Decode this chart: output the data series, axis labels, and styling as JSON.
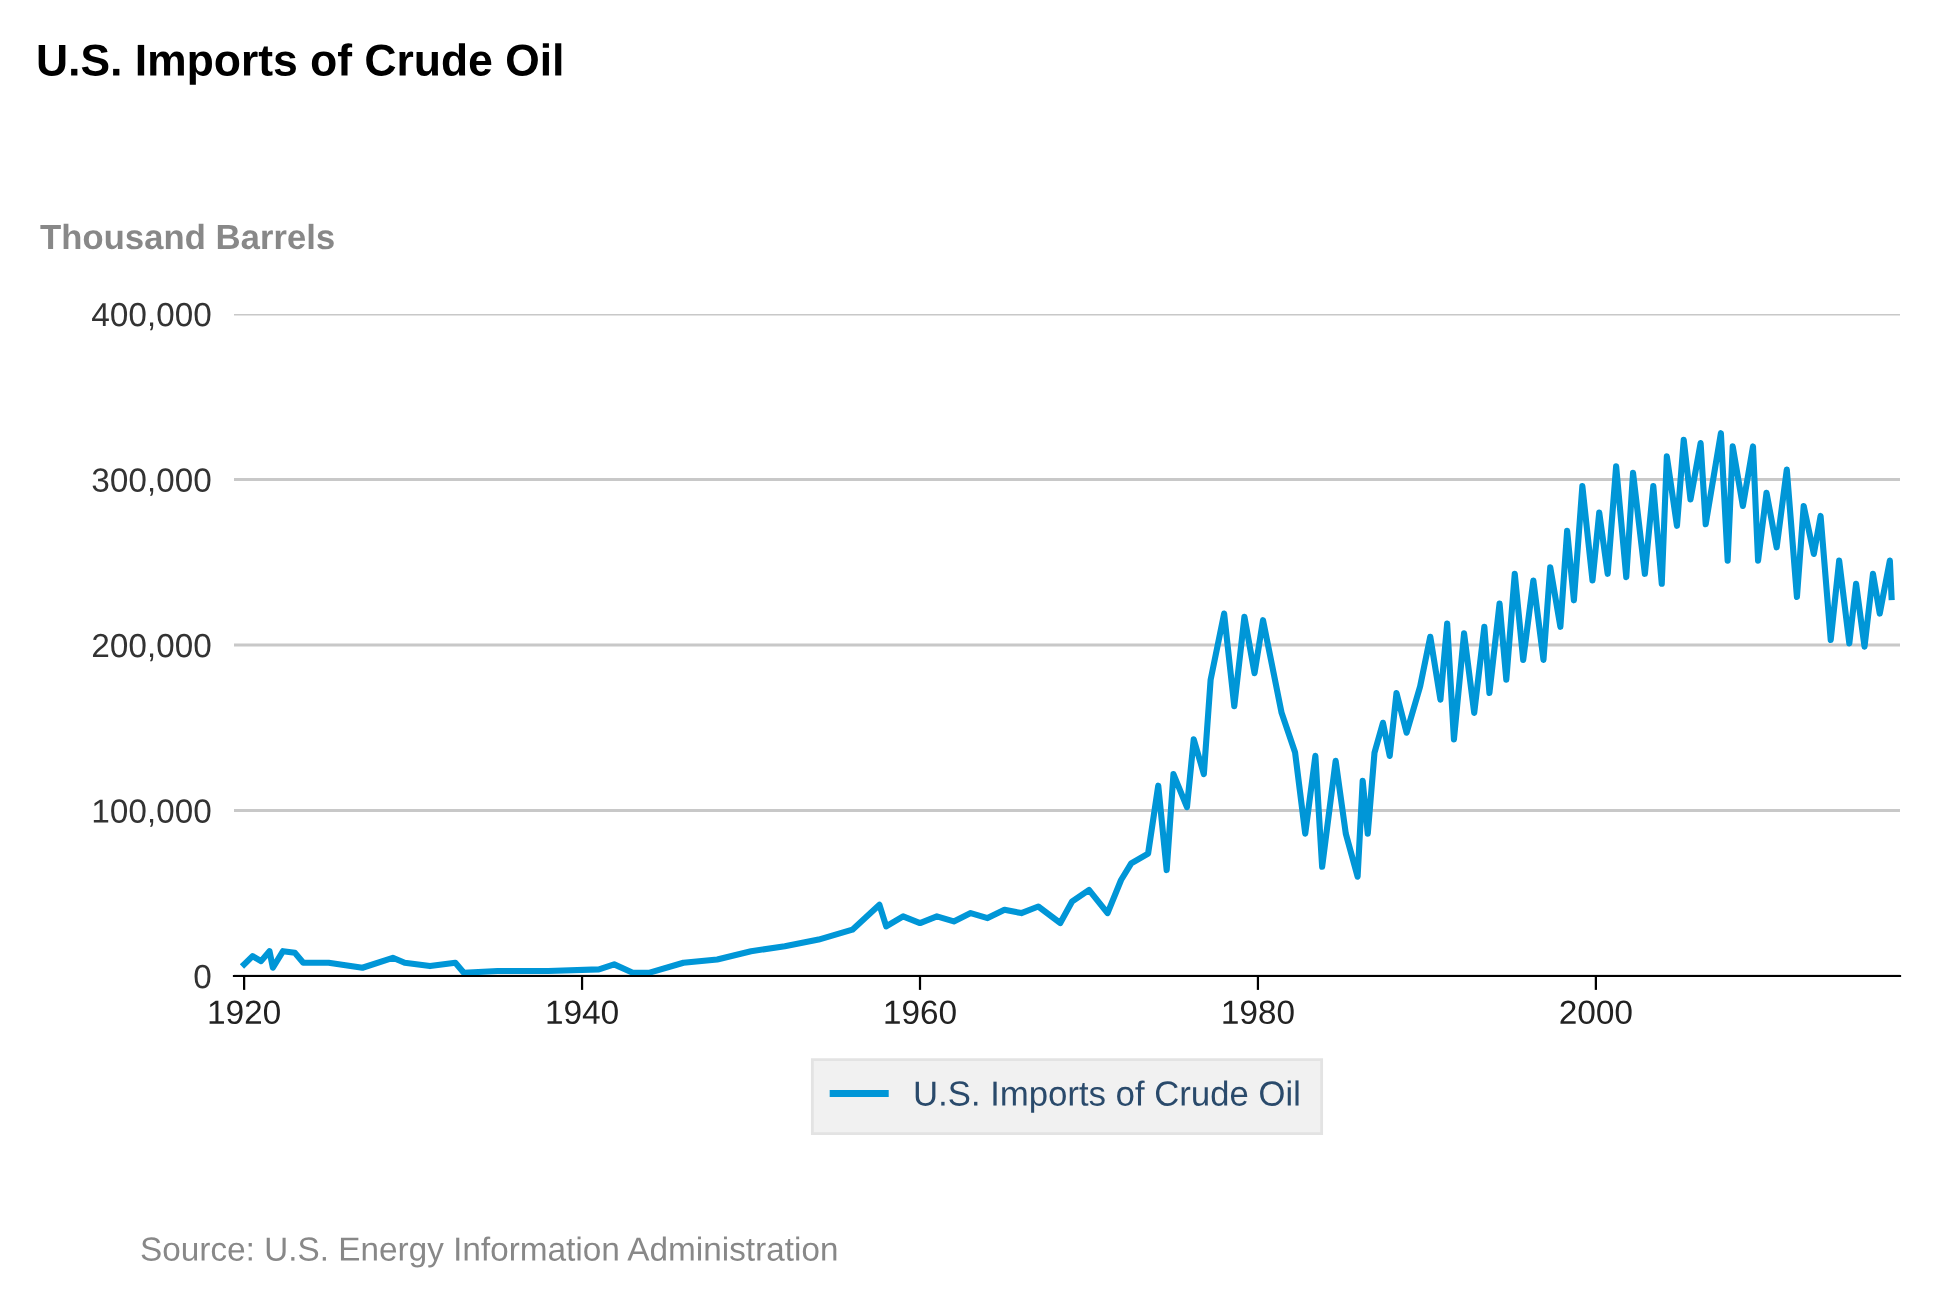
{
  "chart_data": {
    "type": "line",
    "title": "U.S. Imports of Crude Oil",
    "ylabel": "Thousand Barrels",
    "annotations": [
      "Source: U.S. Energy Information Administration"
    ],
    "xlim": [
      1919.4,
      2018
    ],
    "xticks": [
      1920,
      1940,
      1960,
      1980,
      2000
    ],
    "ylim": [
      0,
      400000
    ],
    "yticks": [
      {
        "value": 0,
        "label": "0"
      },
      {
        "value": 100000,
        "label": "100,000"
      },
      {
        "value": 200000,
        "label": "200,000"
      },
      {
        "value": 300000,
        "label": "300,000"
      },
      {
        "value": 400000,
        "label": "400,000"
      }
    ],
    "grid": "y",
    "legend": "bottom",
    "marker": "none",
    "line_style": "solid",
    "series": [
      {
        "name": "U.S. Imports of Crude Oil",
        "color": "#0096d7",
        "x": [
          1920.0,
          1920.5,
          1921.0,
          1921.5,
          1921.7,
          1922.3,
          1923.0,
          1923.5,
          1925.0,
          1927.0,
          1928.8,
          1929.5,
          1931.0,
          1932.5,
          1933.0,
          1935.0,
          1938.0,
          1941.0,
          1941.9,
          1943.0,
          1944.0,
          1946.0,
          1948.0,
          1950.0,
          1952.0,
          1954.0,
          1956.0,
          1957.6,
          1958.0,
          1959.0,
          1960.0,
          1961.0,
          1962.0,
          1963.0,
          1964.0,
          1965.0,
          1966.0,
          1967.0,
          1968.3,
          1969.0,
          1970.0,
          1971.1,
          1971.9,
          1972.5,
          1973.5,
          1974.1,
          1974.6,
          1975.0,
          1975.8,
          1976.2,
          1976.8,
          1977.2,
          1978.0,
          1978.6,
          1979.2,
          1979.8,
          1980.3,
          1981.4,
          1982.2,
          1982.8,
          1983.4,
          1983.8,
          1984.6,
          1985.2,
          1985.9,
          1986.2,
          1986.5,
          1986.9,
          1987.4,
          1987.8,
          1988.2,
          1988.8,
          1989.6,
          1990.2,
          1990.8,
          1991.2,
          1991.6,
          1992.2,
          1992.8,
          1993.4,
          1993.7,
          1994.3,
          1994.7,
          1995.2,
          1995.7,
          1996.3,
          1996.9,
          1997.3,
          1997.9,
          1998.3,
          1998.7,
          1999.2,
          1999.8,
          2000.2,
          2000.7,
          2001.2,
          2001.8,
          2002.2,
          2002.9,
          2003.4,
          2003.9,
          2004.2,
          2004.8,
          2005.2,
          2005.6,
          2006.2,
          2006.5,
          2007.4,
          2007.8,
          2008.1,
          2008.7,
          2009.3,
          2009.6,
          2010.1,
          2010.7,
          2011.3,
          2011.9,
          2012.3,
          2012.9,
          2013.3,
          2013.9,
          2014.4,
          2015.0,
          2015.4,
          2015.9,
          2016.4,
          2016.8,
          2017.4,
          2017.5
        ],
        "values": [
          7000,
          12000,
          9000,
          15000,
          5000,
          15000,
          14000,
          8000,
          8000,
          5000,
          11000,
          8000,
          6000,
          8000,
          2000,
          3000,
          3000,
          4000,
          7000,
          2000,
          2000,
          8000,
          10000,
          15000,
          18000,
          22000,
          28000,
          43000,
          30000,
          36000,
          32000,
          36000,
          33000,
          38000,
          35000,
          40000,
          38000,
          42000,
          32000,
          45000,
          52000,
          38000,
          58000,
          68000,
          74000,
          115000,
          64000,
          122000,
          102000,
          143000,
          122000,
          179000,
          219000,
          163000,
          217000,
          183000,
          215000,
          159000,
          135000,
          86000,
          133000,
          66000,
          130000,
          86000,
          60000,
          118000,
          86000,
          135000,
          153000,
          133000,
          171000,
          147000,
          175000,
          205000,
          167000,
          213000,
          143000,
          207000,
          159000,
          211000,
          171000,
          225000,
          179000,
          243000,
          191000,
          239000,
          191000,
          247000,
          211000,
          269000,
          227000,
          296000,
          239000,
          280000,
          243000,
          308000,
          241000,
          304000,
          243000,
          296000,
          237000,
          314000,
          272000,
          324000,
          288000,
          322000,
          273000,
          328000,
          251000,
          320000,
          284000,
          320000,
          251000,
          292000,
          259000,
          306000,
          229000,
          284000,
          255000,
          278000,
          203000,
          251000,
          201000,
          237000,
          199000,
          243000,
          219000,
          251000,
          229000
        ]
      }
    ]
  }
}
